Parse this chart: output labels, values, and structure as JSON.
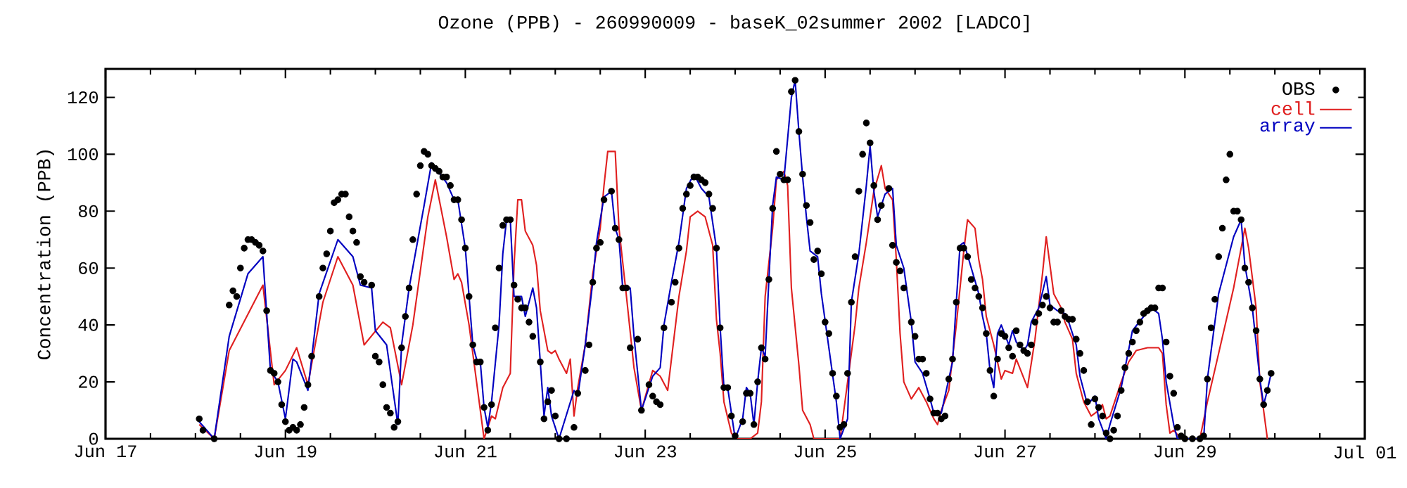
{
  "chart_data": {
    "type": "line",
    "title": "Ozone (PPB) - 260990009 - baseK_02summer 2002 [LADCO]",
    "ylabel": "Concentration (PPB)",
    "xlim": [
      "2002-06-17",
      "2002-07-01"
    ],
    "xticks": [
      {
        "value": "2002-06-17",
        "label": "Jun 17"
      },
      {
        "value": "2002-06-19",
        "label": "Jun 19"
      },
      {
        "value": "2002-06-21",
        "label": "Jun 21"
      },
      {
        "value": "2002-06-23",
        "label": "Jun 23"
      },
      {
        "value": "2002-06-25",
        "label": "Jun 25"
      },
      {
        "value": "2002-06-27",
        "label": "Jun 27"
      },
      {
        "value": "2002-06-29",
        "label": "Jun 29"
      },
      {
        "value": "2002-07-01",
        "label": "Jul 01"
      }
    ],
    "ylim": [
      0,
      130
    ],
    "yticks": [
      0,
      20,
      40,
      60,
      80,
      100,
      120
    ],
    "legend": "top right",
    "series": [
      {
        "name": "OBS",
        "type": "scatter",
        "marker": "circle",
        "color": "#000000",
        "x": [
          "2002-06-18T01:00",
          "2002-06-18T02:00",
          "2002-06-18T05:00",
          "2002-06-18T09:00",
          "2002-06-18T10:00",
          "2002-06-18T11:00",
          "2002-06-18T12:00",
          "2002-06-18T13:00",
          "2002-06-18T14:00",
          "2002-06-18T15:00",
          "2002-06-18T16:00",
          "2002-06-18T17:00",
          "2002-06-18T18:00",
          "2002-06-18T19:00",
          "2002-06-18T20:00",
          "2002-06-18T21:00",
          "2002-06-18T22:00",
          "2002-06-18T23:00",
          "2002-06-19T00:00",
          "2002-06-19T01:00",
          "2002-06-19T02:00",
          "2002-06-19T03:00",
          "2002-06-19T04:00",
          "2002-06-19T05:00",
          "2002-06-19T06:00",
          "2002-06-19T07:00",
          "2002-06-19T09:00",
          "2002-06-19T10:00",
          "2002-06-19T11:00",
          "2002-06-19T12:00",
          "2002-06-19T13:00",
          "2002-06-19T14:00",
          "2002-06-19T15:00",
          "2002-06-19T16:00",
          "2002-06-19T17:00",
          "2002-06-19T18:00",
          "2002-06-19T19:00",
          "2002-06-19T20:00",
          "2002-06-19T21:00",
          "2002-06-19T23:00",
          "2002-06-20T00:00",
          "2002-06-20T01:00",
          "2002-06-20T02:00",
          "2002-06-20T03:00",
          "2002-06-20T04:00",
          "2002-06-20T05:00",
          "2002-06-20T06:00",
          "2002-06-20T07:00",
          "2002-06-20T08:00",
          "2002-06-20T09:00",
          "2002-06-20T10:00",
          "2002-06-20T11:00",
          "2002-06-20T12:00",
          "2002-06-20T13:00",
          "2002-06-20T14:00",
          "2002-06-20T15:00",
          "2002-06-20T16:00",
          "2002-06-20T17:00",
          "2002-06-20T18:00",
          "2002-06-20T19:00",
          "2002-06-20T20:00",
          "2002-06-20T21:00",
          "2002-06-20T22:00",
          "2002-06-20T23:00",
          "2002-06-21T00:00",
          "2002-06-21T01:00",
          "2002-06-21T02:00",
          "2002-06-21T03:00",
          "2002-06-21T04:00",
          "2002-06-21T05:00",
          "2002-06-21T06:00",
          "2002-06-21T07:00",
          "2002-06-21T08:00",
          "2002-06-21T09:00",
          "2002-06-21T10:00",
          "2002-06-21T11:00",
          "2002-06-21T12:00",
          "2002-06-21T13:00",
          "2002-06-21T14:00",
          "2002-06-21T15:00",
          "2002-06-21T16:00",
          "2002-06-21T17:00",
          "2002-06-21T18:00",
          "2002-06-21T20:00",
          "2002-06-21T21:00",
          "2002-06-21T22:00",
          "2002-06-21T23:00",
          "2002-06-22T00:00",
          "2002-06-22T01:00",
          "2002-06-22T03:00",
          "2002-06-22T05:00",
          "2002-06-22T06:00",
          "2002-06-22T08:00",
          "2002-06-22T09:00",
          "2002-06-22T10:00",
          "2002-06-22T11:00",
          "2002-06-22T12:00",
          "2002-06-22T13:00",
          "2002-06-22T15:00",
          "2002-06-22T16:00",
          "2002-06-22T17:00",
          "2002-06-22T18:00",
          "2002-06-22T19:00",
          "2002-06-22T20:00",
          "2002-06-22T22:00",
          "2002-06-22T23:00",
          "2002-06-23T01:00",
          "2002-06-23T02:00",
          "2002-06-23T03:00",
          "2002-06-23T04:00",
          "2002-06-23T05:00",
          "2002-06-23T07:00",
          "2002-06-23T08:00",
          "2002-06-23T09:00",
          "2002-06-23T10:00",
          "2002-06-23T11:00",
          "2002-06-23T12:00",
          "2002-06-23T13:00",
          "2002-06-23T14:00",
          "2002-06-23T15:00",
          "2002-06-23T16:00",
          "2002-06-23T17:00",
          "2002-06-23T18:00",
          "2002-06-23T19:00",
          "2002-06-23T20:00",
          "2002-06-23T21:00",
          "2002-06-23T22:00",
          "2002-06-23T23:00",
          "2002-06-24T00:00",
          "2002-06-24T02:00",
          "2002-06-24T03:00",
          "2002-06-24T04:00",
          "2002-06-24T05:00",
          "2002-06-24T06:00",
          "2002-06-24T07:00",
          "2002-06-24T08:00",
          "2002-06-24T09:00",
          "2002-06-24T10:00",
          "2002-06-24T11:00",
          "2002-06-24T12:00",
          "2002-06-24T13:00",
          "2002-06-24T14:00",
          "2002-06-24T15:00",
          "2002-06-24T16:00",
          "2002-06-24T17:00",
          "2002-06-24T18:00",
          "2002-06-24T19:00",
          "2002-06-24T20:00",
          "2002-06-24T21:00",
          "2002-06-24T22:00",
          "2002-06-24T23:00",
          "2002-06-25T00:00",
          "2002-06-25T01:00",
          "2002-06-25T02:00",
          "2002-06-25T03:00",
          "2002-06-25T04:00",
          "2002-06-25T05:00",
          "2002-06-25T06:00",
          "2002-06-25T07:00",
          "2002-06-25T08:00",
          "2002-06-25T09:00",
          "2002-06-25T10:00",
          "2002-06-25T11:00",
          "2002-06-25T12:00",
          "2002-06-25T13:00",
          "2002-06-25T14:00",
          "2002-06-25T15:00",
          "2002-06-25T17:00",
          "2002-06-25T18:00",
          "2002-06-25T19:00",
          "2002-06-25T20:00",
          "2002-06-25T21:00",
          "2002-06-25T23:00",
          "2002-06-26T00:00",
          "2002-06-26T01:00",
          "2002-06-26T02:00",
          "2002-06-26T03:00",
          "2002-06-26T04:00",
          "2002-06-26T05:00",
          "2002-06-26T06:00",
          "2002-06-26T07:00",
          "2002-06-26T08:00",
          "2002-06-26T09:00",
          "2002-06-26T10:00",
          "2002-06-26T11:00",
          "2002-06-26T12:00",
          "2002-06-26T13:00",
          "2002-06-26T14:00",
          "2002-06-26T15:00",
          "2002-06-26T16:00",
          "2002-06-26T17:00",
          "2002-06-26T18:00",
          "2002-06-26T19:00",
          "2002-06-26T20:00",
          "2002-06-26T21:00",
          "2002-06-26T22:00",
          "2002-06-26T23:00",
          "2002-06-27T00:00",
          "2002-06-27T01:00",
          "2002-06-27T02:00",
          "2002-06-27T03:00",
          "2002-06-27T04:00",
          "2002-06-27T05:00",
          "2002-06-27T06:00",
          "2002-06-27T07:00",
          "2002-06-27T08:00",
          "2002-06-27T09:00",
          "2002-06-27T10:00",
          "2002-06-27T11:00",
          "2002-06-27T12:00",
          "2002-06-27T13:00",
          "2002-06-27T14:00",
          "2002-06-27T15:00",
          "2002-06-27T16:00",
          "2002-06-27T17:00",
          "2002-06-27T18:00",
          "2002-06-27T19:00",
          "2002-06-27T20:00",
          "2002-06-27T21:00",
          "2002-06-27T22:00",
          "2002-06-27T23:00",
          "2002-06-28T00:00",
          "2002-06-28T01:00",
          "2002-06-28T02:00",
          "2002-06-28T03:00",
          "2002-06-28T04:00",
          "2002-06-28T05:00",
          "2002-06-28T06:00",
          "2002-06-28T07:00",
          "2002-06-28T08:00",
          "2002-06-28T09:00",
          "2002-06-28T10:00",
          "2002-06-28T11:00",
          "2002-06-28T12:00",
          "2002-06-28T13:00",
          "2002-06-28T14:00",
          "2002-06-28T15:00",
          "2002-06-28T16:00",
          "2002-06-28T17:00",
          "2002-06-28T18:00",
          "2002-06-28T19:00",
          "2002-06-28T20:00",
          "2002-06-28T21:00",
          "2002-06-28T22:00",
          "2002-06-28T23:00",
          "2002-06-29T00:00",
          "2002-06-29T02:00",
          "2002-06-29T04:00",
          "2002-06-29T05:00",
          "2002-06-29T06:00",
          "2002-06-29T07:00",
          "2002-06-29T08:00",
          "2002-06-29T09:00",
          "2002-06-29T10:00",
          "2002-06-29T11:00",
          "2002-06-29T12:00",
          "2002-06-29T13:00",
          "2002-06-29T14:00",
          "2002-06-29T15:00",
          "2002-06-29T16:00",
          "2002-06-29T17:00",
          "2002-06-29T18:00",
          "2002-06-29T19:00",
          "2002-06-29T20:00",
          "2002-06-29T21:00",
          "2002-06-29T22:00",
          "2002-06-29T23:00"
        ],
        "values": [
          7,
          3,
          0,
          47,
          52,
          50,
          60,
          67,
          70,
          70,
          69,
          68,
          66,
          45,
          24,
          23,
          20,
          12,
          6,
          3,
          4,
          3,
          5,
          11,
          19,
          29,
          50,
          60,
          65,
          73,
          83,
          84,
          86,
          86,
          78,
          73,
          69,
          57,
          55,
          54,
          29,
          27,
          19,
          11,
          9,
          4,
          6,
          32,
          43,
          53,
          70,
          86,
          96,
          101,
          100,
          96,
          95,
          94,
          92,
          92,
          89,
          84,
          84,
          77,
          67,
          50,
          33,
          27,
          27,
          11,
          3,
          12,
          39,
          60,
          75,
          77,
          77,
          54,
          49,
          46,
          46,
          41,
          36,
          27,
          7,
          13,
          17,
          8,
          0,
          0,
          4,
          16,
          24,
          33,
          55,
          67,
          69,
          84,
          87,
          74,
          70,
          53,
          53,
          32,
          35,
          10,
          19,
          15,
          13,
          12,
          39,
          48,
          55,
          67,
          81,
          86,
          89,
          92,
          92,
          91,
          90,
          86,
          81,
          67,
          39,
          18,
          18,
          8,
          1,
          6,
          16,
          16,
          5,
          20,
          32,
          28,
          56,
          81,
          101,
          93,
          91,
          91,
          122,
          126,
          108,
          93,
          82,
          76,
          63,
          66,
          58,
          41,
          37,
          23,
          15,
          4,
          5,
          23,
          48,
          64,
          87,
          100,
          111,
          104,
          89,
          77,
          82,
          88,
          68,
          62,
          59,
          53,
          41,
          36,
          28,
          28,
          23,
          14,
          9,
          9,
          7,
          8,
          21,
          28,
          48,
          67,
          67,
          64,
          56,
          53,
          50,
          46,
          37,
          24,
          15,
          28,
          37,
          36,
          32,
          29,
          38,
          33,
          31,
          30,
          33,
          41,
          44,
          47,
          50,
          46,
          41,
          41,
          45,
          43,
          42,
          42,
          35,
          30,
          24,
          13,
          5,
          14,
          11,
          8,
          2,
          0,
          3,
          8,
          17,
          25,
          30,
          34,
          38,
          41,
          44,
          45,
          46,
          46,
          53,
          53,
          34,
          22,
          16,
          4,
          1,
          0,
          0,
          0,
          1,
          21,
          39,
          49,
          64,
          74,
          91,
          100,
          80,
          80,
          77,
          60,
          55,
          46,
          38,
          21,
          12,
          17,
          23
        ]
      },
      {
        "name": "cell",
        "type": "line",
        "marker": "none",
        "color": "#e02020",
        "x": [
          "2002-06-18T01:00",
          "2002-06-18T05:00",
          "2002-06-18T09:00",
          "2002-06-18T18:00",
          "2002-06-18T21:00",
          "2002-06-19T00:00",
          "2002-06-19T03:00",
          "2002-06-19T06:00",
          "2002-06-19T10:00",
          "2002-06-19T14:00",
          "2002-06-19T18:00",
          "2002-06-19T21:00",
          "2002-06-20T02:00",
          "2002-06-20T04:00",
          "2002-06-20T07:00",
          "2002-06-20T10:00",
          "2002-06-20T14:00",
          "2002-06-20T16:00",
          "2002-06-20T19:00",
          "2002-06-20T21:00",
          "2002-06-20T22:00",
          "2002-06-20T23:00",
          "2002-06-21T01:00",
          "2002-06-21T03:00",
          "2002-06-21T05:00",
          "2002-06-21T07:00",
          "2002-06-21T08:00",
          "2002-06-21T10:00",
          "2002-06-21T12:00",
          "2002-06-21T13:00",
          "2002-06-21T14:00",
          "2002-06-21T15:00",
          "2002-06-21T16:00",
          "2002-06-21T18:00",
          "2002-06-21T19:00",
          "2002-06-21T20:00",
          "2002-06-21T22:00",
          "2002-06-21T23:00",
          "2002-06-22T00:00",
          "2002-06-22T01:00",
          "2002-06-22T03:00",
          "2002-06-22T04:00",
          "2002-06-22T05:00",
          "2002-06-22T06:00",
          "2002-06-22T08:00",
          "2002-06-22T10:00",
          "2002-06-22T12:00",
          "2002-06-22T13:00",
          "2002-06-22T14:00",
          "2002-06-22T16:00",
          "2002-06-22T17:00",
          "2002-06-22T19:00",
          "2002-06-22T21:00",
          "2002-06-22T23:00",
          "2002-06-23T02:00",
          "2002-06-23T04:00",
          "2002-06-23T06:00",
          "2002-06-23T07:00",
          "2002-06-23T09:00",
          "2002-06-23T11:00",
          "2002-06-23T12:00",
          "2002-06-23T14:00",
          "2002-06-23T16:00",
          "2002-06-23T18:00",
          "2002-06-23T19:00",
          "2002-06-23T20:00",
          "2002-06-23T21:00",
          "2002-06-23T23:00",
          "2002-06-24T00:00",
          "2002-06-24T04:00",
          "2002-06-24T06:00",
          "2002-06-24T07:00",
          "2002-06-24T08:00",
          "2002-06-24T10:00",
          "2002-06-24T11:00",
          "2002-06-24T13:00",
          "2002-06-24T14:00",
          "2002-06-24T15:00",
          "2002-06-24T17:00",
          "2002-06-24T18:00",
          "2002-06-24T20:00",
          "2002-06-24T21:00",
          "2002-06-25T04:00",
          "2002-06-25T06:00",
          "2002-06-25T08:00",
          "2002-06-25T09:00",
          "2002-06-25T11:00",
          "2002-06-25T13:00",
          "2002-06-25T15:00",
          "2002-06-25T16:00",
          "2002-06-25T18:00",
          "2002-06-25T19:00",
          "2002-06-25T20:00",
          "2002-06-25T21:00",
          "2002-06-25T23:00",
          "2002-06-26T01:00",
          "2002-06-26T03:00",
          "2002-06-26T05:00",
          "2002-06-26T06:00",
          "2002-06-26T07:00",
          "2002-06-26T09:00",
          "2002-06-26T11:00",
          "2002-06-26T13:00",
          "2002-06-26T14:00",
          "2002-06-26T16:00",
          "2002-06-26T17:00",
          "2002-06-26T18:00",
          "2002-06-26T19:00",
          "2002-06-26T21:00",
          "2002-06-26T23:00",
          "2002-06-27T00:00",
          "2002-06-27T02:00",
          "2002-06-27T03:00",
          "2002-06-27T06:00",
          "2002-06-27T08:00",
          "2002-06-27T10:00",
          "2002-06-27T11:00",
          "2002-06-27T13:00",
          "2002-06-27T15:00",
          "2002-06-27T16:00",
          "2002-06-27T18:00",
          "2002-06-27T19:00",
          "2002-06-27T21:00",
          "2002-06-27T23:00",
          "2002-06-28T01:00",
          "2002-06-28T02:00",
          "2002-06-28T03:00",
          "2002-06-28T04:00",
          "2002-06-28T07:00",
          "2002-06-28T09:00",
          "2002-06-28T11:00",
          "2002-06-28T14:00",
          "2002-06-28T17:00",
          "2002-06-28T18:00",
          "2002-06-28T19:00",
          "2002-06-28T20:00",
          "2002-06-28T21:00",
          "2002-06-28T23:00",
          "2002-06-29T04:00",
          "2002-06-29T06:00",
          "2002-06-29T09:00",
          "2002-06-29T13:00",
          "2002-06-29T16:00",
          "2002-06-29T17:00",
          "2002-06-29T19:00",
          "2002-06-29T20:00",
          "2002-06-29T22:00"
        ],
        "values": [
          5,
          0,
          31,
          54,
          19,
          24,
          32,
          19,
          48,
          64,
          54,
          33,
          41,
          39,
          19,
          40,
          78,
          91,
          71,
          56,
          58,
          55,
          40,
          20,
          0,
          8,
          7,
          18,
          23,
          61,
          84,
          84,
          73,
          68,
          61,
          45,
          31,
          30,
          31,
          28,
          23,
          28,
          8,
          18,
          33,
          58,
          74,
          89,
          101,
          101,
          74,
          50,
          25,
          10,
          24,
          22,
          17,
          28,
          50,
          66,
          78,
          80,
          78,
          68,
          42,
          30,
          13,
          2,
          0,
          0,
          2,
          13,
          50,
          74,
          91,
          94,
          89,
          53,
          26,
          10,
          5,
          0,
          0,
          20,
          40,
          53,
          69,
          87,
          96,
          88,
          84,
          63,
          37,
          20,
          14,
          18,
          13,
          7,
          5,
          10,
          17,
          40,
          66,
          77,
          74,
          63,
          56,
          43,
          33,
          21,
          24,
          23,
          28,
          18,
          35,
          58,
          71,
          51,
          46,
          41,
          35,
          23,
          13,
          8,
          10,
          12,
          7,
          8,
          20,
          27,
          31,
          32,
          32,
          30,
          12,
          2,
          3,
          0,
          0,
          13,
          30,
          53,
          74,
          67,
          46,
          20,
          0
        ]
      },
      {
        "name": "array",
        "type": "line",
        "marker": "none",
        "color": "#0000c0",
        "x": [
          "2002-06-18T01:00",
          "2002-06-18T05:00",
          "2002-06-18T09:00",
          "2002-06-18T14:00",
          "2002-06-18T18:00",
          "2002-06-18T20:00",
          "2002-06-18T22:00",
          "2002-06-19T00:00",
          "2002-06-19T02:00",
          "2002-06-19T03:00",
          "2002-06-19T06:00",
          "2002-06-19T09:00",
          "2002-06-19T14:00",
          "2002-06-19T18:00",
          "2002-06-19T20:00",
          "2002-06-19T23:00",
          "2002-06-20T00:00",
          "2002-06-20T03:00",
          "2002-06-20T06:00",
          "2002-06-20T07:00",
          "2002-06-20T09:00",
          "2002-06-20T13:00",
          "2002-06-20T15:00",
          "2002-06-20T19:00",
          "2002-06-20T21:00",
          "2002-06-20T22:00",
          "2002-06-21T00:00",
          "2002-06-21T02:00",
          "2002-06-21T03:00",
          "2002-06-21T04:00",
          "2002-06-21T05:00",
          "2002-06-21T06:00",
          "2002-06-21T07:00",
          "2002-06-21T09:00",
          "2002-06-21T10:00",
          "2002-06-21T11:00",
          "2002-06-21T12:00",
          "2002-06-21T13:00",
          "2002-06-21T15:00",
          "2002-06-21T16:00",
          "2002-06-21T18:00",
          "2002-06-21T19:00",
          "2002-06-21T21:00",
          "2002-06-21T22:00",
          "2002-06-21T23:00",
          "2002-06-22T01:00",
          "2002-06-22T05:00",
          "2002-06-22T06:00",
          "2002-06-22T08:00",
          "2002-06-22T10:00",
          "2002-06-22T11:00",
          "2002-06-22T13:00",
          "2002-06-22T15:00",
          "2002-06-22T16:00",
          "2002-06-22T17:00",
          "2002-06-22T18:00",
          "2002-06-22T20:00",
          "2002-06-22T21:00",
          "2002-06-22T23:00",
          "2002-06-23T02:00",
          "2002-06-23T04:00",
          "2002-06-23T05:00",
          "2002-06-23T07:00",
          "2002-06-23T09:00",
          "2002-06-23T11:00",
          "2002-06-23T13:00",
          "2002-06-23T15:00",
          "2002-06-23T17:00",
          "2002-06-23T19:00",
          "2002-06-23T20:00",
          "2002-06-23T21:00",
          "2002-06-23T22:00",
          "2002-06-24T00:00",
          "2002-06-24T02:00",
          "2002-06-24T03:00",
          "2002-06-24T04:00",
          "2002-06-24T05:00",
          "2002-06-24T06:00",
          "2002-06-24T07:00",
          "2002-06-24T08:00",
          "2002-06-24T09:00",
          "2002-06-24T10:00",
          "2002-06-24T11:00",
          "2002-06-24T13:00",
          "2002-06-24T15:00",
          "2002-06-24T16:00",
          "2002-06-24T17:00",
          "2002-06-24T18:00",
          "2002-06-24T19:00",
          "2002-06-24T20:00",
          "2002-06-24T22:00",
          "2002-06-24T23:00",
          "2002-06-25T01:00",
          "2002-06-25T03:00",
          "2002-06-25T04:00",
          "2002-06-25T06:00",
          "2002-06-25T07:00",
          "2002-06-25T09:00",
          "2002-06-25T11:00",
          "2002-06-25T12:00",
          "2002-06-25T13:00",
          "2002-06-25T14:00",
          "2002-06-25T16:00",
          "2002-06-25T18:00",
          "2002-06-25T19:00",
          "2002-06-25T21:00",
          "2002-06-25T23:00",
          "2002-06-26T00:00",
          "2002-06-26T02:00",
          "2002-06-26T04:00",
          "2002-06-26T05:00",
          "2002-06-26T07:00",
          "2002-06-26T09:00",
          "2002-06-26T10:00",
          "2002-06-26T11:00",
          "2002-06-26T12:00",
          "2002-06-26T13:00",
          "2002-06-26T15:00",
          "2002-06-26T17:00",
          "2002-06-26T18:00",
          "2002-06-26T19:00",
          "2002-06-26T20:00",
          "2002-06-26T21:00",
          "2002-06-26T22:00",
          "2002-06-26T23:00",
          "2002-06-27T01:00",
          "2002-06-27T02:00",
          "2002-06-27T03:00",
          "2002-06-27T05:00",
          "2002-06-27T06:00",
          "2002-06-27T07:00",
          "2002-06-27T09:00",
          "2002-06-27T11:00",
          "2002-06-27T12:00",
          "2002-06-27T14:00",
          "2002-06-27T16:00",
          "2002-06-27T17:00",
          "2002-06-27T19:00",
          "2002-06-27T20:00",
          "2002-06-27T22:00",
          "2002-06-28T00:00",
          "2002-06-28T01:00",
          "2002-06-28T03:00",
          "2002-06-28T04:00",
          "2002-06-28T07:00",
          "2002-06-28T10:00",
          "2002-06-28T13:00",
          "2002-06-28T15:00",
          "2002-06-28T17:00",
          "2002-06-28T18:00",
          "2002-06-28T19:00",
          "2002-06-28T21:00",
          "2002-06-28T22:00",
          "2002-06-29T05:00",
          "2002-06-29T06:00",
          "2002-06-29T09:00",
          "2002-06-29T13:00",
          "2002-06-29T15:00",
          "2002-06-29T16:00",
          "2002-06-29T18:00",
          "2002-06-29T20:00",
          "2002-06-29T21:00",
          "2002-06-29T22:00",
          "2002-06-29T23:00"
        ],
        "values": [
          6,
          0,
          36,
          58,
          64,
          24,
          20,
          7,
          28,
          27,
          17,
          51,
          70,
          64,
          54,
          53,
          38,
          33,
          5,
          33,
          53,
          82,
          97,
          90,
          84,
          84,
          67,
          33,
          28,
          27,
          11,
          4,
          13,
          40,
          65,
          77,
          77,
          50,
          50,
          43,
          53,
          46,
          8,
          18,
          8,
          0,
          17,
          15,
          33,
          55,
          69,
          85,
          87,
          74,
          70,
          53,
          53,
          36,
          10,
          22,
          25,
          40,
          55,
          69,
          88,
          93,
          88,
          85,
          67,
          39,
          18,
          18,
          0,
          7,
          18,
          16,
          5,
          20,
          32,
          29,
          56,
          82,
          92,
          91,
          120,
          126,
          108,
          92,
          78,
          66,
          64,
          51,
          32,
          13,
          0,
          7,
          48,
          65,
          89,
          103,
          87,
          78,
          86,
          88,
          68,
          60,
          41,
          27,
          23,
          14,
          9,
          9,
          21,
          27,
          48,
          68,
          69,
          60,
          51,
          43,
          37,
          24,
          18,
          37,
          40,
          33,
          38,
          34,
          31,
          33,
          41,
          46,
          57,
          47,
          45,
          44,
          41,
          33,
          22,
          12,
          15,
          7,
          0,
          5,
          18,
          38,
          43,
          46,
          44,
          35,
          20,
          5,
          0,
          0,
          21,
          51,
          71,
          77,
          61,
          46,
          21,
          12,
          17,
          23
        ]
      }
    ]
  }
}
